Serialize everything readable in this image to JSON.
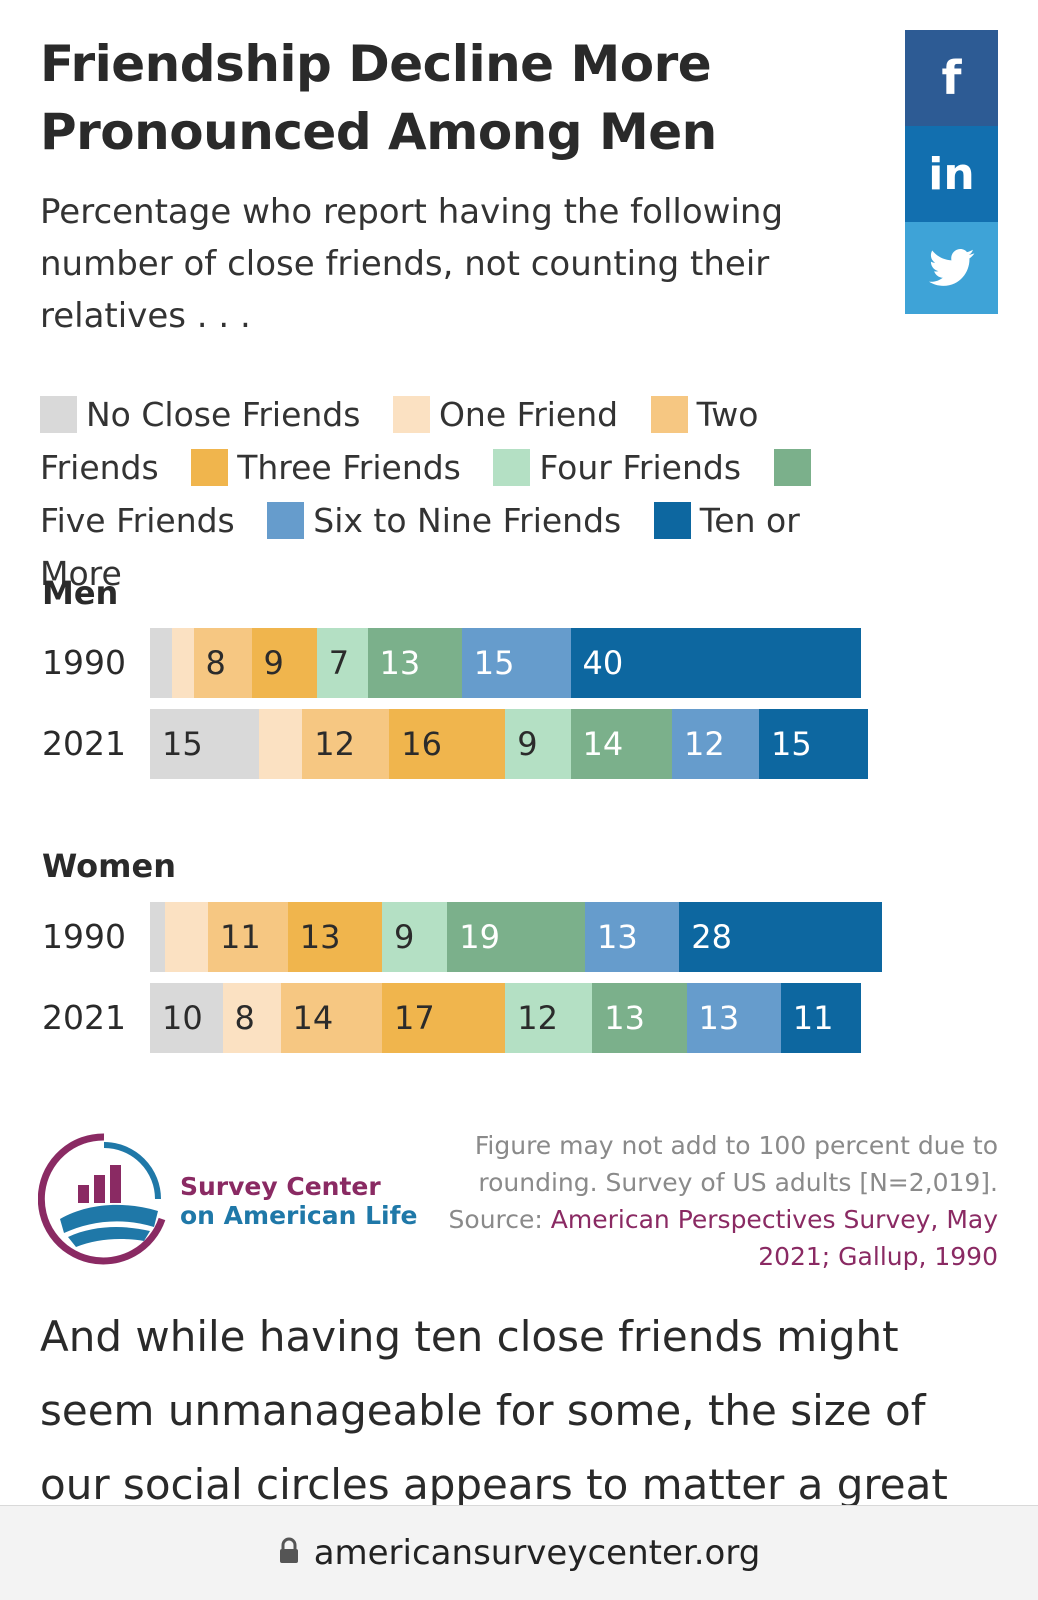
{
  "header": {
    "title": "Friendship Decline More Pronounced Among Men",
    "subtitle": "Percentage who report having the following number of close friends, not counting their relatives . . ."
  },
  "share": {
    "facebook_label": "f",
    "linkedin_label": "in",
    "twitter_icon": "twitter-bird-icon"
  },
  "legend": [
    {
      "label": "No Close Friends",
      "color": "#d9d9d9"
    },
    {
      "label": "One Friend",
      "color": "#fbe1c2"
    },
    {
      "label": "Two Friends",
      "color": "#f6c782"
    },
    {
      "label": "Three Friends",
      "color": "#f0b54d"
    },
    {
      "label": "Four Friends",
      "color": "#b4e0c4"
    },
    {
      "label": "Five Friends",
      "color": "#7bb08b"
    },
    {
      "label": "Six to Nine Friends",
      "color": "#669ccc"
    },
    {
      "label": "Ten or More",
      "color": "#0d67a0"
    }
  ],
  "chart_data": {
    "type": "bar",
    "stacked": true,
    "orientation": "horizontal",
    "title": "Friendship Decline More Pronounced Among Men",
    "subtitle": "Percentage who report having the following number of close friends, not counting their relatives . . .",
    "categories": [
      "No Close Friends",
      "One Friend",
      "Two Friends",
      "Three Friends",
      "Four Friends",
      "Five Friends",
      "Six to Nine Friends",
      "Ten or More"
    ],
    "groups": [
      {
        "name": "Men",
        "rows": [
          {
            "year": "1990",
            "values": [
              3,
              3,
              8,
              9,
              7,
              13,
              15,
              40
            ],
            "labels": [
              "",
              "",
              "8",
              "9",
              "7",
              "13",
              "15",
              "40"
            ]
          },
          {
            "year": "2021",
            "values": [
              15,
              6,
              12,
              16,
              9,
              14,
              12,
              15
            ],
            "labels": [
              "15",
              "",
              "12",
              "16",
              "9",
              "14",
              "12",
              "15"
            ]
          }
        ]
      },
      {
        "name": "Women",
        "rows": [
          {
            "year": "1990",
            "values": [
              2,
              6,
              11,
              13,
              9,
              19,
              13,
              28
            ],
            "labels": [
              "",
              "",
              "11",
              "13",
              "9",
              "19",
              "13",
              "28"
            ]
          },
          {
            "year": "2021",
            "values": [
              10,
              8,
              14,
              17,
              12,
              13,
              13,
              11
            ],
            "labels": [
              "10",
              "8",
              "14",
              "17",
              "12",
              "13",
              "13",
              "11"
            ]
          }
        ]
      }
    ],
    "xlim": [
      0,
      100
    ]
  },
  "footer": {
    "logo_line1": "Survey Center",
    "logo_line2": "on American Life",
    "note": "Figure may not add to 100 percent due to rounding. Survey of US adults [N=2,019].",
    "source_prefix": "Source: ",
    "source_link": "American Perspectives Survey, May 2021; Gallup, 1990"
  },
  "article": {
    "paragraph": "And while having ten close friends might seem unmanageable for some, the size of our social circles appears to matter a great"
  },
  "browser": {
    "url": "americansurveycenter.org"
  },
  "colors": {
    "link": "#8a2a63",
    "label_dark": "#2b2b2b",
    "label_light": "#ffffff"
  }
}
